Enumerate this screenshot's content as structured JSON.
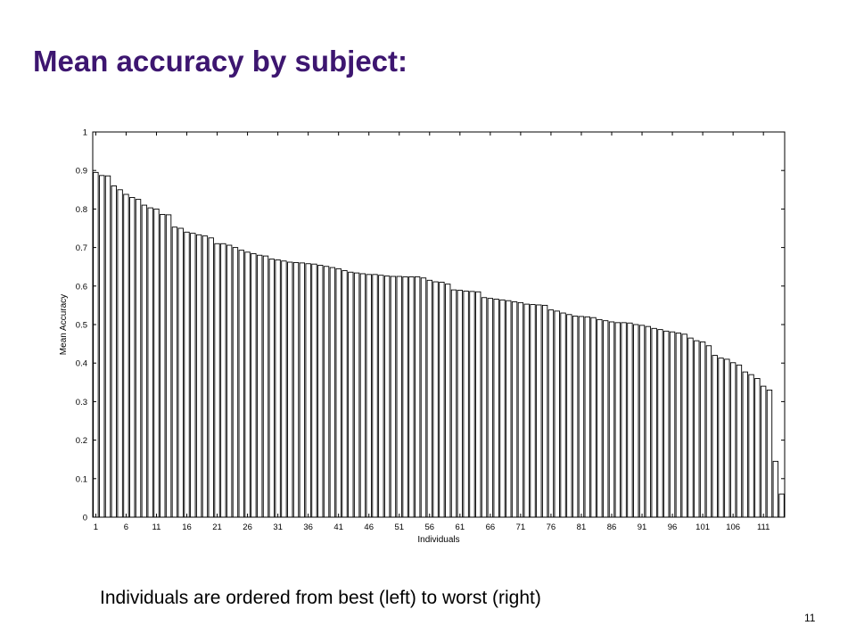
{
  "slide": {
    "title": "Mean accuracy by subject:",
    "caption": "Individuals are ordered from best (left) to worst (right)",
    "page_number": "11",
    "title_color": "#3d1670"
  },
  "chart_data": {
    "type": "bar",
    "title": "",
    "xlabel": "Individuals",
    "ylabel": "Mean Accuracy",
    "ylim": [
      0,
      1
    ],
    "yticks": [
      0,
      0.1,
      0.2,
      0.3,
      0.4,
      0.5,
      0.6,
      0.7,
      0.8,
      0.9,
      1
    ],
    "ytick_labels": [
      "0",
      "0.1",
      "0.2",
      "0.3",
      "0.4",
      "0.5",
      "0.6",
      "0.7",
      "0.8",
      "0.9",
      "1"
    ],
    "xlim": [
      0.5,
      114.5
    ],
    "xticks": [
      1,
      6,
      11,
      16,
      21,
      26,
      31,
      36,
      41,
      46,
      51,
      56,
      61,
      66,
      71,
      76,
      81,
      86,
      91,
      96,
      101,
      106,
      111
    ],
    "xtick_labels": [
      "1",
      "6",
      "11",
      "16",
      "21",
      "26",
      "31",
      "36",
      "41",
      "46",
      "51",
      "56",
      "61",
      "66",
      "71",
      "76",
      "81",
      "86",
      "91",
      "96",
      "101",
      "106",
      "111"
    ],
    "grid": false,
    "bar_fill": "#ffffff",
    "bar_stroke": "#000000",
    "values": [
      0.895,
      0.887,
      0.886,
      0.86,
      0.85,
      0.838,
      0.83,
      0.825,
      0.81,
      0.803,
      0.8,
      0.786,
      0.785,
      0.753,
      0.75,
      0.74,
      0.737,
      0.733,
      0.73,
      0.725,
      0.71,
      0.71,
      0.706,
      0.7,
      0.693,
      0.688,
      0.684,
      0.68,
      0.678,
      0.67,
      0.668,
      0.665,
      0.662,
      0.661,
      0.66,
      0.658,
      0.657,
      0.654,
      0.651,
      0.648,
      0.645,
      0.64,
      0.636,
      0.634,
      0.632,
      0.63,
      0.63,
      0.628,
      0.626,
      0.625,
      0.625,
      0.624,
      0.624,
      0.624,
      0.621,
      0.615,
      0.611,
      0.61,
      0.605,
      0.59,
      0.589,
      0.587,
      0.586,
      0.585,
      0.57,
      0.568,
      0.566,
      0.564,
      0.562,
      0.559,
      0.557,
      0.553,
      0.552,
      0.551,
      0.55,
      0.538,
      0.535,
      0.53,
      0.526,
      0.522,
      0.521,
      0.52,
      0.518,
      0.513,
      0.51,
      0.507,
      0.505,
      0.505,
      0.504,
      0.5,
      0.498,
      0.495,
      0.49,
      0.487,
      0.483,
      0.481,
      0.478,
      0.475,
      0.465,
      0.458,
      0.455,
      0.445,
      0.42,
      0.413,
      0.41,
      0.401,
      0.395,
      0.377,
      0.37,
      0.36,
      0.34,
      0.33,
      0.145,
      0.06
    ]
  }
}
